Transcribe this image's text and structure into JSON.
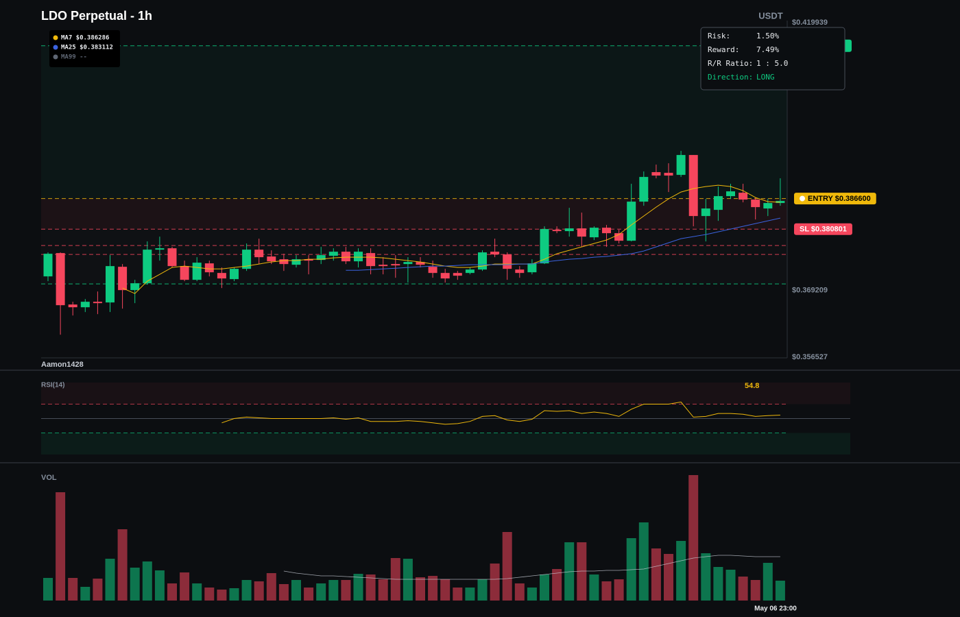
{
  "chart_data": {
    "type": "candlestick",
    "title": "LDO Perpetual - 1h",
    "currency": "USDT",
    "watermark": "Aamon1428",
    "up_color": "#0ecb81",
    "down_color": "#f6465d",
    "categories": [
      null,
      null,
      null,
      null,
      null,
      null,
      null,
      null,
      null,
      null,
      null,
      null,
      null,
      null,
      null,
      null,
      null,
      null,
      null,
      null,
      null,
      null,
      null,
      null,
      null,
      null,
      null,
      null,
      null,
      null,
      null,
      null,
      null,
      null,
      null,
      null,
      null,
      null,
      null,
      null,
      null,
      null,
      null,
      null,
      null,
      null,
      null,
      null,
      null,
      null,
      null,
      null,
      null,
      null,
      null,
      null,
      null,
      null,
      null,
      "May 06 23:00"
    ],
    "open": [
      0.37184,
      0.37626,
      0.36651,
      0.36599,
      0.36703,
      0.3669,
      0.37366,
      0.36924,
      0.37054,
      0.37691,
      0.37717,
      0.37379,
      0.37119,
      0.37431,
      0.37249,
      0.37132,
      0.37327,
      0.37691,
      0.37561,
      0.37509,
      0.37405,
      0.37509,
      0.37496,
      0.37574,
      0.37652,
      0.3747,
      0.37626,
      0.37405,
      0.37418,
      0.37418,
      0.37457,
      0.37366,
      0.37249,
      0.37249,
      0.37249,
      0.37314,
      0.37652,
      0.376,
      0.37314,
      0.37262,
      0.37431,
      0.38068,
      0.38042,
      0.38094,
      0.37925,
      0.38107,
      0.38003,
      0.3786,
      0.38601,
      0.3916,
      0.39147,
      0.39108,
      0.39485,
      0.38328,
      0.38445,
      0.38705,
      0.3877,
      0.3864,
      0.38471,
      0.38575
    ],
    "high": [
      0.37639,
      0.37639,
      0.36703,
      0.36755,
      0.36898,
      0.37587,
      0.37418,
      0.37119,
      0.37847,
      0.37938,
      0.37743,
      0.37483,
      0.37548,
      0.37483,
      0.37353,
      0.37353,
      0.37808,
      0.37899,
      0.37678,
      0.37613,
      0.37587,
      0.37587,
      0.37743,
      0.37717,
      0.37743,
      0.37717,
      0.37717,
      0.37548,
      0.37587,
      0.37548,
      0.37548,
      0.37483,
      0.37327,
      0.37288,
      0.37353,
      0.37678,
      0.37899,
      0.37639,
      0.37379,
      0.37509,
      0.38133,
      0.38133,
      0.38484,
      0.38393,
      0.38133,
      0.38159,
      0.38068,
      0.38939,
      0.39173,
      0.39303,
      0.39329,
      0.39563,
      0.39485,
      0.38653,
      0.38887,
      0.38939,
      0.38939,
      0.38679,
      0.38653,
      0.39043
    ],
    "low": [
      0.37093,
      0.36079,
      0.36443,
      0.36508,
      0.36469,
      0.36508,
      0.36573,
      0.36677,
      0.37028,
      0.37483,
      0.37353,
      0.37093,
      0.37093,
      0.37184,
      0.36963,
      0.37093,
      0.37288,
      0.37418,
      0.37418,
      0.37288,
      0.37353,
      0.37223,
      0.37418,
      0.37483,
      0.37418,
      0.37353,
      0.37223,
      0.37223,
      0.37158,
      0.37067,
      0.37353,
      0.37158,
      0.37067,
      0.37119,
      0.37223,
      0.37288,
      0.37548,
      0.37119,
      0.37158,
      0.37223,
      0.37418,
      0.38003,
      0.37938,
      0.37743,
      0.37873,
      0.37743,
      0.37808,
      0.37847,
      0.38523,
      0.39043,
      0.38783,
      0.39069,
      0.38133,
      0.37847,
      0.38237,
      0.38653,
      0.38588,
      0.38263,
      0.38328,
      0.38523
    ],
    "close": [
      0.37613,
      0.36638,
      0.36599,
      0.36703,
      0.36677,
      0.37379,
      0.36924,
      0.37054,
      0.37691,
      0.37717,
      0.37379,
      0.37119,
      0.37444,
      0.37262,
      0.37145,
      0.37327,
      0.37691,
      0.37548,
      0.3747,
      0.37418,
      0.37509,
      0.37483,
      0.37587,
      0.37652,
      0.3747,
      0.37652,
      0.37379,
      0.37379,
      0.37392,
      0.37457,
      0.37405,
      0.37249,
      0.37145,
      0.37197,
      0.37314,
      0.37639,
      0.376,
      0.37327,
      0.37249,
      0.37431,
      0.38081,
      0.38042,
      0.38094,
      0.37938,
      0.38107,
      0.38003,
      0.3786,
      0.38601,
      0.39069,
      0.39095,
      0.39095,
      0.39485,
      0.38328,
      0.38471,
      0.38705,
      0.38796,
      0.3864,
      0.38497,
      0.38575,
      0.38614
    ],
    "ylim": [
      0.356527,
      0.419939
    ],
    "yticks": [
      {
        "value": 0.419939,
        "label": "$0.419939"
      },
      {
        "value": 0.369209,
        "label": "$0.369209"
      },
      {
        "value": 0.356527,
        "label": "$0.356527"
      }
    ],
    "series": [
      {
        "name": "MA7 $0.386286",
        "color": "#f0b90b",
        "values": [
          null,
          null,
          null,
          null,
          null,
          null,
          0.36963,
          0.36859,
          0.37093,
          0.37223,
          0.37353,
          0.37379,
          0.37353,
          0.37327,
          0.37327,
          0.37353,
          0.37379,
          0.37418,
          0.37457,
          0.37483,
          0.37483,
          0.37509,
          0.37509,
          0.37535,
          0.37548,
          0.37548,
          0.37548,
          0.37535,
          0.37509,
          0.37483,
          0.37457,
          0.37418,
          0.37379,
          0.37353,
          0.37353,
          0.37379,
          0.37418,
          0.37418,
          0.37418,
          0.37418,
          0.37509,
          0.37613,
          0.37678,
          0.37743,
          0.37808,
          0.37873,
          0.37977,
          0.38159,
          0.38328,
          0.38497,
          0.38653,
          0.38783,
          0.38848,
          0.38887,
          0.38913,
          0.38887,
          0.38809,
          0.38679,
          0.38601,
          0.38588
        ]
      },
      {
        "name": "MA25 $0.383112",
        "color": "#3b63e0",
        "values": [
          null,
          null,
          null,
          null,
          null,
          null,
          null,
          null,
          null,
          null,
          null,
          null,
          null,
          null,
          null,
          null,
          null,
          null,
          null,
          null,
          null,
          null,
          null,
          null,
          0.37301,
          0.37301,
          0.37314,
          0.37327,
          0.3734,
          0.37353,
          0.37366,
          0.37379,
          0.37379,
          0.37392,
          0.37405,
          0.37405,
          0.37405,
          0.37405,
          0.37418,
          0.37418,
          0.37457,
          0.37483,
          0.37509,
          0.37522,
          0.37548,
          0.37561,
          0.37587,
          0.37613,
          0.37665,
          0.37743,
          0.37821,
          0.37899,
          0.37938,
          0.37977,
          0.38029,
          0.38081,
          0.38133,
          0.38185,
          0.38237,
          0.38289
        ]
      },
      {
        "name": "MA99 --",
        "color": "#5e6673",
        "values": [
          null,
          null,
          null,
          null,
          null,
          null,
          null,
          null,
          null,
          null,
          null,
          null,
          null,
          null,
          null,
          null,
          null,
          null,
          null,
          null,
          null,
          null,
          null,
          null,
          null,
          null,
          null,
          null,
          null,
          null,
          null,
          null,
          null,
          null,
          null,
          null,
          null,
          null,
          null,
          null,
          null,
          null,
          null,
          null,
          null,
          null,
          null,
          null,
          null,
          null,
          null,
          null,
          null,
          null,
          null,
          null,
          null,
          null,
          null,
          null
        ]
      }
    ],
    "price_lines": [
      {
        "value": 0.41556,
        "color": "#0ecb81"
      },
      {
        "value": 0.3866,
        "color": "#f0b90b",
        "label": "ENTRY $0.386600"
      },
      {
        "value": 0.380801,
        "color": "#f6465d",
        "label": "SL $0.380801"
      },
      {
        "value": 0.37769,
        "color": "#f6465d"
      },
      {
        "value": 0.376,
        "color": "#f6465d"
      },
      {
        "value": 0.37041,
        "color": "#0ecb81"
      }
    ],
    "tooltip": {
      "rows": [
        [
          "Risk:",
          "1.50%"
        ],
        [
          "Reward:",
          "7.49%"
        ],
        [
          "R/R Ratio:",
          "1 : 5.0"
        ],
        [
          "Direction:",
          "LONG"
        ]
      ]
    },
    "rsi": {
      "title": "RSI(14)",
      "color": "#f0b90b",
      "ylim": [
        0,
        100
      ],
      "levels": [
        {
          "value": 70,
          "color": "#f6465d"
        },
        {
          "value": 50,
          "color": "#474d57"
        },
        {
          "value": 30,
          "color": "#0ecb81"
        }
      ],
      "values": [
        null,
        null,
        null,
        null,
        null,
        null,
        null,
        null,
        null,
        null,
        null,
        null,
        null,
        null,
        44,
        50,
        52,
        51,
        50,
        50,
        50,
        50,
        50,
        51,
        49,
        51,
        46,
        46,
        46,
        47,
        46,
        44,
        42,
        43,
        46,
        53,
        54,
        48,
        46,
        49,
        61,
        60,
        61,
        57,
        59,
        57,
        53,
        63,
        70,
        70,
        70,
        73,
        52,
        53,
        57,
        57,
        56,
        53,
        54,
        54.8
      ]
    },
    "volume": {
      "title": "VOL",
      "values": [
        33,
        158,
        33,
        20,
        32,
        61,
        104,
        48,
        57,
        44,
        25,
        41,
        25,
        19,
        16,
        18,
        30,
        28,
        40,
        24,
        30,
        19,
        25,
        30,
        30,
        39,
        38,
        31,
        62,
        61,
        34,
        36,
        31,
        19,
        19,
        31,
        54,
        100,
        25,
        19,
        38,
        46,
        85,
        85,
        38,
        28,
        31,
        91,
        114,
        76,
        68,
        87,
        183,
        69,
        49,
        45,
        35,
        30,
        55,
        29
      ],
      "ma": [
        null,
        null,
        null,
        null,
        null,
        null,
        null,
        null,
        null,
        null,
        null,
        null,
        null,
        null,
        null,
        null,
        null,
        null,
        null,
        43,
        40,
        38,
        36,
        36,
        35,
        34,
        33,
        32,
        31,
        31,
        31,
        31,
        31,
        31,
        31,
        31,
        31,
        32,
        34,
        36,
        38,
        40,
        42,
        43,
        43,
        44,
        44,
        45,
        46,
        50,
        54,
        58,
        62,
        64,
        66,
        66,
        65,
        64,
        64,
        64
      ],
      "ma_color": "#c7ccd4"
    }
  }
}
